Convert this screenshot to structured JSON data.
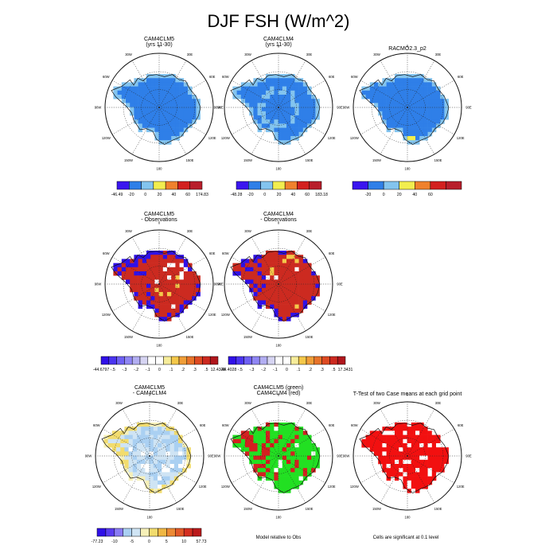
{
  "title": "DJF FSH (W/m^2)",
  "panels": [
    {
      "title": [
        "CAM4CLM5",
        "(yrs 11-30)"
      ]
    },
    {
      "title": [
        "CAM4CLM4",
        "(yrs 11-30)"
      ]
    },
    {
      "title": [
        "RACMO2.3_p2",
        ""
      ]
    },
    {
      "title": [
        "CAM4CLM5",
        "- Observations"
      ]
    },
    {
      "title": [
        "CAM4CLM4",
        "- Observations"
      ]
    },
    {
      "title": [
        "CAM4CLM5",
        "- CAM4CLM4"
      ]
    },
    {
      "title": [
        "CAM4CLM5 (green)",
        "CAM4CLM4 (red)"
      ]
    },
    {
      "title": [
        "T-Test of two Case means at each grid point",
        ""
      ]
    }
  ],
  "notes": {
    "diff_models": "Model relative to Obs",
    "ttest": "Cells are significant at 0.1 level"
  },
  "lon_labels": [
    "0",
    "30E",
    "60E",
    "90E",
    "120E",
    "150E",
    "180",
    "150W",
    "120W",
    "90W",
    "60W",
    "30W"
  ],
  "colorbars": [
    {
      "colors": [
        "#3a16ef",
        "#2f7fe8",
        "#83c4ef",
        "#f2ee4e",
        "#f0812c",
        "#d3201f",
        "#b81e2b"
      ],
      "labels": [
        "-46.49",
        "-20",
        "0",
        "20",
        "40",
        "60",
        "174.83"
      ],
      "end_labels": true
    },
    {
      "colors": [
        "#3a16ef",
        "#2f7fe8",
        "#83c4ef",
        "#f2ee4e",
        "#f0812c",
        "#d3201f",
        "#b81e2b"
      ],
      "labels": [
        "-48.28",
        "-20",
        "0",
        "20",
        "40",
        "60",
        "183.18"
      ],
      "end_labels": true
    },
    {
      "colors": [
        "#3a16ef",
        "#2f7fe8",
        "#83c4ef",
        "#f2ee4e",
        "#f0812c",
        "#d3201f",
        "#b81e2b"
      ],
      "labels": [
        "-20",
        "0",
        "20",
        "40",
        "60"
      ],
      "end_labels": false
    },
    {
      "colors": [
        "#3010e8",
        "#4a34f0",
        "#6e60f4",
        "#8f86f4",
        "#b2aef2",
        "#d6d4f2",
        "#ffffff",
        "#ffffff",
        "#f6ec9a",
        "#f4c84a",
        "#f09e38",
        "#e8742a",
        "#de4a22",
        "#cc2a20",
        "#b0161c"
      ],
      "labels": [
        "-44.6797",
        "-.5",
        "-.3",
        "-.2",
        "-.1",
        "0",
        ".1",
        ".2",
        ".3",
        ".5",
        "12.4328"
      ],
      "end_labels": true
    },
    {
      "colors": [
        "#3010e8",
        "#4a34f0",
        "#6e60f4",
        "#8f86f4",
        "#b2aef2",
        "#d6d4f2",
        "#ffffff",
        "#ffffff",
        "#f6ec9a",
        "#f4c84a",
        "#f09e38",
        "#e8742a",
        "#de4a22",
        "#cc2a20",
        "#b0161c"
      ],
      "labels": [
        "-44.4028",
        "-.5",
        "-.3",
        "-.2",
        "-.1",
        "0",
        ".1",
        ".2",
        ".3",
        ".5",
        "17.3431"
      ],
      "end_labels": true
    },
    {
      "colors": [
        "#3010e8",
        "#5a3cf0",
        "#8a7cf4",
        "#aad0f2",
        "#cfe4f4",
        "#f6f0b8",
        "#f2dc6e",
        "#f0b844",
        "#ec8a34",
        "#e25a28",
        "#d42e20",
        "#bb1a1c"
      ],
      "labels": [
        "-77.23",
        "-10",
        "-5",
        "0",
        "5",
        "10",
        "57.73"
      ],
      "end_labels": true
    }
  ],
  "chart_data": {
    "type": "heatmap",
    "title": "DJF FSH (W/m^2)",
    "projection": "south polar stereographic",
    "panels": [
      {
        "name": "CAM4CLM5 (yrs 11-30)",
        "range": [
          -46.49,
          174.83
        ],
        "dominant_band": "-20 to 0"
      },
      {
        "name": "CAM4CLM4 (yrs 11-30)",
        "range": [
          -48.28,
          183.18
        ],
        "dominant_band": "-20 to 0"
      },
      {
        "name": "RACMO2.3_p2",
        "dominant_band": "-20 to 0"
      },
      {
        "name": "CAM4CLM5 - Observations",
        "range": [
          -44.6797,
          12.4328
        ]
      },
      {
        "name": "CAM4CLM4 - Observations",
        "range": [
          -44.4028,
          17.3431
        ]
      },
      {
        "name": "CAM4CLM5 - CAM4CLM4",
        "range": [
          -77.23,
          57.73
        ]
      },
      {
        "name": "CAM4CLM5 (green) CAM4CLM4 (red)",
        "categories": [
          "CAM4CLM5",
          "CAM4CLM4"
        ]
      },
      {
        "name": "T-Test of two Case means at each grid point",
        "significance": 0.1
      }
    ]
  }
}
